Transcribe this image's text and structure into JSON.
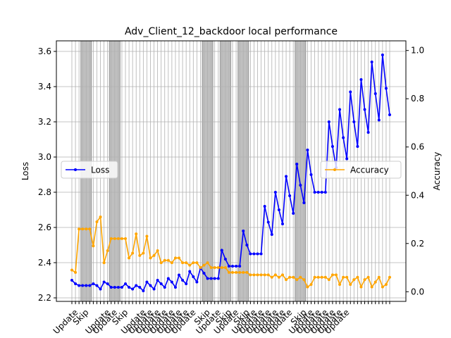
{
  "chart_data": {
    "type": "line",
    "title": "Adv_Client_12_backdoor local performance",
    "xlabel": "",
    "ylabel_left": "Loss",
    "ylabel_right": "Accuracy",
    "ylim_left": [
      2.18,
      3.66
    ],
    "ylim_right": [
      -0.04,
      1.04
    ],
    "yticks_left": [
      "2.2",
      "2.4",
      "2.6",
      "2.8",
      "3.0",
      "3.2",
      "3.4",
      "3.6"
    ],
    "yticks_right": [
      "0.0",
      "0.2",
      "0.4",
      "0.6",
      "0.8",
      "1.0"
    ],
    "grid": true,
    "x_tick_labels": [
      "Update",
      "Skip",
      "Update",
      "Update",
      "Skip",
      "Update",
      "Update",
      "Update",
      "Update",
      "Update",
      "Update",
      "Update",
      "Update",
      "Skip",
      "Update",
      "Skip",
      "Update",
      "Skip",
      "Update",
      "Update",
      "Update",
      "Update",
      "Update",
      "Update",
      "Skip",
      "Update",
      "Update",
      "Update",
      "Update",
      "Update",
      "Update"
    ],
    "x_tick_positions": [
      0,
      3,
      9,
      11,
      14,
      19,
      21,
      23,
      25,
      27,
      29,
      31,
      33,
      37,
      40,
      43,
      45,
      48,
      50,
      52,
      54,
      56,
      58,
      60,
      64,
      66,
      68,
      70,
      72,
      74,
      76
    ],
    "skip_spans": [
      [
        3,
        5
      ],
      [
        11,
        13
      ],
      [
        37,
        39
      ],
      [
        42,
        44
      ],
      [
        47,
        49
      ],
      [
        63,
        65
      ]
    ],
    "series": [
      {
        "name": "Loss",
        "axis": "left",
        "color": "#0000ff",
        "values": [
          2.3,
          2.28,
          2.27,
          2.27,
          2.27,
          2.27,
          2.28,
          2.27,
          2.25,
          2.29,
          2.28,
          2.26,
          2.26,
          2.26,
          2.26,
          2.28,
          2.26,
          2.25,
          2.27,
          2.26,
          2.24,
          2.29,
          2.27,
          2.25,
          2.3,
          2.28,
          2.26,
          2.31,
          2.29,
          2.26,
          2.33,
          2.3,
          2.28,
          2.35,
          2.32,
          2.29,
          2.37,
          2.34,
          2.31,
          2.31,
          2.31,
          2.31,
          2.47,
          2.42,
          2.38,
          2.38,
          2.38,
          2.38,
          2.58,
          2.5,
          2.45,
          2.45,
          2.45,
          2.45,
          2.72,
          2.63,
          2.56,
          2.8,
          2.7,
          2.62,
          2.89,
          2.78,
          2.68,
          2.96,
          2.84,
          2.74,
          3.04,
          2.9,
          2.8,
          2.8,
          2.8,
          2.8,
          3.2,
          3.06,
          2.94,
          3.27,
          3.11,
          2.99,
          3.37,
          3.2,
          3.06,
          3.44,
          3.27,
          3.14,
          3.54,
          3.36,
          3.21,
          3.58,
          3.39,
          3.24
        ]
      },
      {
        "name": "Accuracy",
        "axis": "right",
        "color": "#ffa500",
        "values": [
          0.09,
          0.08,
          0.26,
          0.26,
          0.26,
          0.26,
          0.19,
          0.29,
          0.31,
          0.12,
          0.17,
          0.22,
          0.22,
          0.22,
          0.22,
          0.22,
          0.14,
          0.16,
          0.24,
          0.15,
          0.16,
          0.23,
          0.14,
          0.15,
          0.17,
          0.12,
          0.13,
          0.13,
          0.12,
          0.14,
          0.14,
          0.12,
          0.12,
          0.11,
          0.12,
          0.12,
          0.1,
          0.11,
          0.12,
          0.1,
          0.1,
          0.1,
          0.1,
          0.1,
          0.08,
          0.08,
          0.08,
          0.08,
          0.08,
          0.08,
          0.07,
          0.07,
          0.07,
          0.07,
          0.07,
          0.07,
          0.06,
          0.07,
          0.06,
          0.07,
          0.05,
          0.06,
          0.06,
          0.05,
          0.06,
          0.05,
          0.02,
          0.03,
          0.06,
          0.06,
          0.06,
          0.06,
          0.05,
          0.07,
          0.07,
          0.03,
          0.06,
          0.06,
          0.03,
          0.05,
          0.06,
          0.02,
          0.05,
          0.06,
          0.02,
          0.04,
          0.06,
          0.02,
          0.03,
          0.06
        ]
      }
    ],
    "legend": [
      {
        "name": "Loss",
        "placement": "center-left"
      },
      {
        "name": "Accuracy",
        "placement": "center-right"
      }
    ]
  }
}
